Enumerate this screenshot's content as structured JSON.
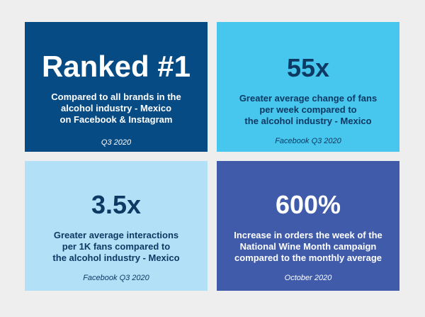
{
  "colors": {
    "background": "#eeeeee",
    "card1_bg": "#074b85",
    "card2_bg": "#47c6ee",
    "card3_bg": "#b1e0f7",
    "card4_bg": "#3f5ba9",
    "dark_text": "#0d3a63",
    "light_text": "#ffffff"
  },
  "cards": [
    {
      "headline": "Ranked #1",
      "description_lines": [
        "Compared to all brands in the",
        "alcohol industry - Mexico",
        "on Facebook & Instagram"
      ],
      "source": "Q3 2020"
    },
    {
      "headline": "55x",
      "description_lines": [
        "Greater average change of fans",
        "per week compared to",
        "the alcohol industry - Mexico"
      ],
      "source": "Facebook Q3  2020"
    },
    {
      "headline": "3.5x",
      "description_lines": [
        "Greater average interactions",
        "per 1K fans compared to",
        "the alcohol industry - Mexico"
      ],
      "source": "Facebook Q3  2020"
    },
    {
      "headline": "600%",
      "description_lines": [
        "Increase in orders the week of the",
        "National Wine Month campaign",
        "compared to the monthly average"
      ],
      "source": "October 2020"
    }
  ]
}
